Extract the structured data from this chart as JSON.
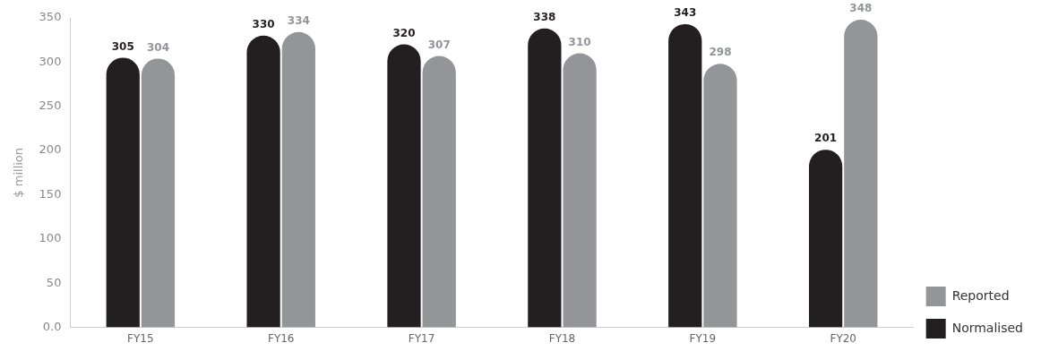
{
  "chart_data": {
    "type": "bar",
    "ylabel": "$ million",
    "categories": [
      "FY15",
      "FY16",
      "FY17",
      "FY18",
      "FY19",
      "FY20"
    ],
    "series": [
      {
        "name": "Normalised",
        "color": "#231f20",
        "values": [
          305,
          330,
          320,
          338,
          343,
          201
        ]
      },
      {
        "name": "Reported",
        "color": "#939598",
        "values": [
          304,
          334,
          307,
          310,
          298,
          348
        ]
      }
    ],
    "ylim": [
      0,
      350
    ],
    "yticks": [
      {
        "value": 0,
        "label": "0.0"
      },
      50,
      100,
      150,
      200,
      250,
      300,
      350
    ],
    "grid": false,
    "legend": "bottom right",
    "data_labels": true
  }
}
